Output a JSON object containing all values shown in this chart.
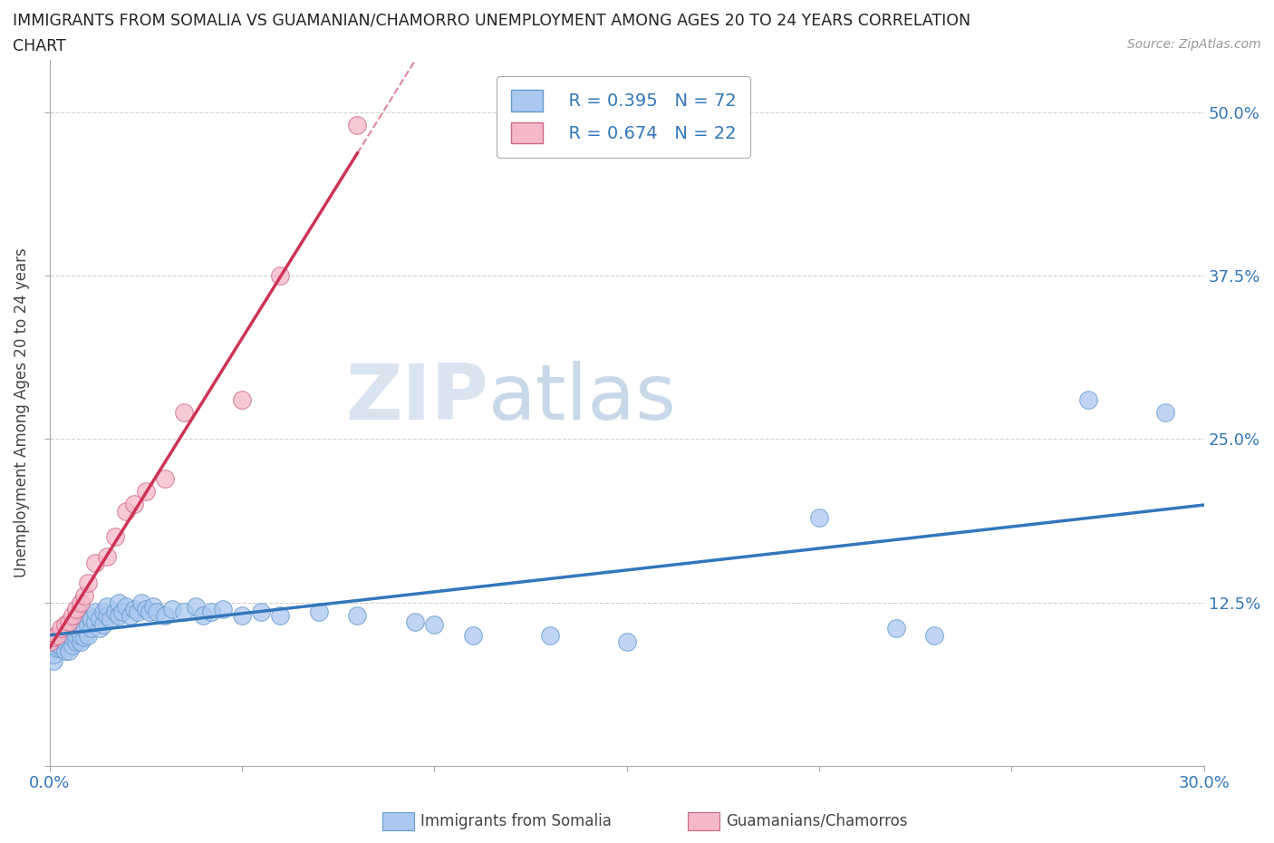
{
  "title_line1": "IMMIGRANTS FROM SOMALIA VS GUAMANIAN/CHAMORRO UNEMPLOYMENT AMONG AGES 20 TO 24 YEARS CORRELATION",
  "title_line2": "CHART",
  "source_text": "Source: ZipAtlas.com",
  "ylabel": "Unemployment Among Ages 20 to 24 years",
  "xlim": [
    0.0,
    0.3
  ],
  "ylim": [
    0.0,
    0.54
  ],
  "yticks": [
    0.0,
    0.125,
    0.25,
    0.375,
    0.5
  ],
  "ytick_labels_right": [
    "",
    "12.5%",
    "25.0%",
    "37.5%",
    "50.0%"
  ],
  "grid_color": "#d0d0d0",
  "background_color": "#ffffff",
  "blue_color": "#aac8f0",
  "blue_edge_color": "#6699cc",
  "pink_color": "#f5b8c8",
  "pink_edge_color": "#cc6688",
  "blue_line_color": "#3377bb",
  "pink_line_color": "#cc3355",
  "R_blue": 0.395,
  "N_blue": 72,
  "R_pink": 0.674,
  "N_pink": 22,
  "watermark_zip": "ZIP",
  "watermark_atlas": "atlas",
  "legend_label_blue": "Immigrants from Somalia",
  "legend_label_pink": "Guamanians/Chamorros",
  "somalia_x": [
    0.0,
    0.001,
    0.001,
    0.002,
    0.002,
    0.003,
    0.003,
    0.003,
    0.004,
    0.004,
    0.005,
    0.005,
    0.005,
    0.006,
    0.006,
    0.007,
    0.007,
    0.007,
    0.008,
    0.008,
    0.008,
    0.009,
    0.009,
    0.01,
    0.01,
    0.01,
    0.011,
    0.011,
    0.012,
    0.012,
    0.013,
    0.013,
    0.014,
    0.014,
    0.015,
    0.015,
    0.016,
    0.017,
    0.018,
    0.018,
    0.019,
    0.02,
    0.021,
    0.022,
    0.023,
    0.024,
    0.025,
    0.026,
    0.027,
    0.028,
    0.03,
    0.032,
    0.035,
    0.038,
    0.04,
    0.042,
    0.045,
    0.05,
    0.055,
    0.06,
    0.07,
    0.08,
    0.095,
    0.1,
    0.11,
    0.13,
    0.15,
    0.2,
    0.22,
    0.23,
    0.27,
    0.29
  ],
  "somalia_y": [
    0.095,
    0.08,
    0.085,
    0.09,
    0.095,
    0.09,
    0.092,
    0.098,
    0.088,
    0.095,
    0.1,
    0.095,
    0.088,
    0.092,
    0.098,
    0.095,
    0.1,
    0.105,
    0.095,
    0.1,
    0.108,
    0.098,
    0.105,
    0.1,
    0.108,
    0.115,
    0.105,
    0.112,
    0.11,
    0.118,
    0.105,
    0.112,
    0.108,
    0.118,
    0.115,
    0.122,
    0.112,
    0.118,
    0.115,
    0.125,
    0.118,
    0.122,
    0.115,
    0.12,
    0.118,
    0.125,
    0.12,
    0.118,
    0.122,
    0.118,
    0.115,
    0.12,
    0.118,
    0.122,
    0.115,
    0.118,
    0.12,
    0.115,
    0.118,
    0.115,
    0.118,
    0.115,
    0.11,
    0.108,
    0.1,
    0.1,
    0.095,
    0.19,
    0.105,
    0.1,
    0.28,
    0.27
  ],
  "guam_x": [
    0.0,
    0.001,
    0.002,
    0.003,
    0.004,
    0.005,
    0.006,
    0.007,
    0.008,
    0.009,
    0.01,
    0.012,
    0.015,
    0.017,
    0.02,
    0.022,
    0.025,
    0.03,
    0.035,
    0.05,
    0.06,
    0.08
  ],
  "guam_y": [
    0.095,
    0.098,
    0.1,
    0.105,
    0.108,
    0.11,
    0.115,
    0.12,
    0.125,
    0.13,
    0.14,
    0.155,
    0.16,
    0.175,
    0.195,
    0.2,
    0.21,
    0.22,
    0.27,
    0.28,
    0.375,
    0.49
  ]
}
